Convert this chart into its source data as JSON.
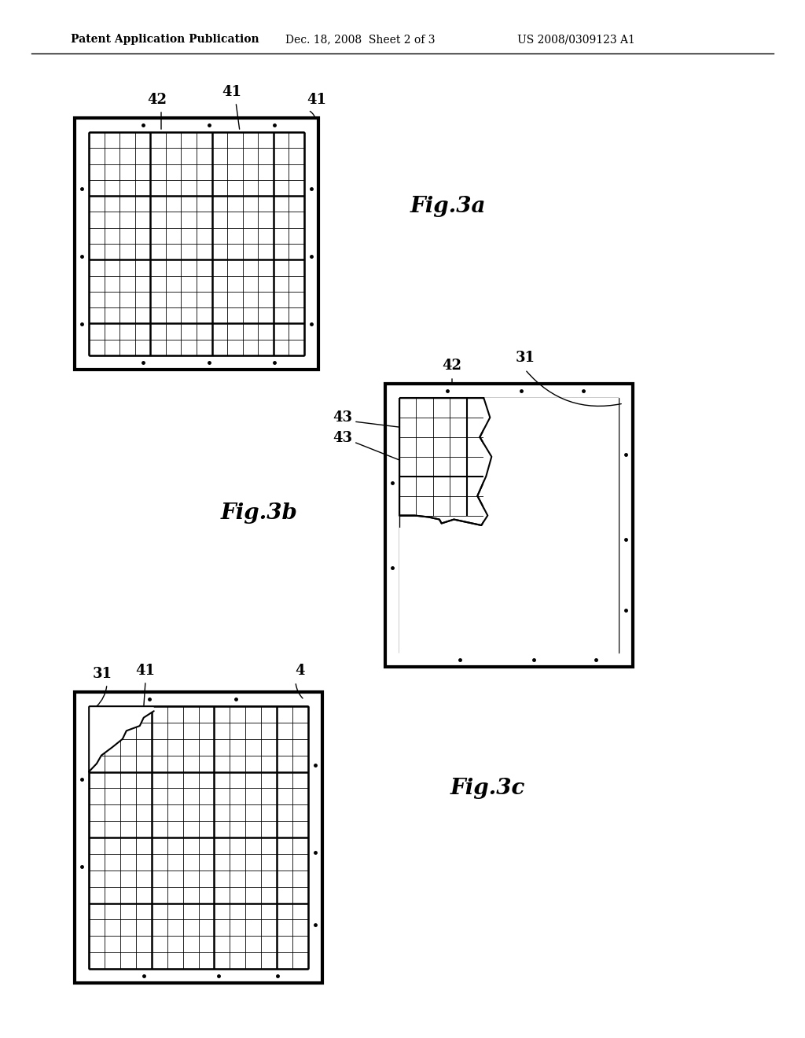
{
  "bg_color": "#ffffff",
  "header_text": "Patent Application Publication",
  "header_date": "Dec. 18, 2008  Sheet 2 of 3",
  "header_patent": "US 2008/0309123 A1",
  "fig3a_label": "Fig.3a",
  "fig3b_label": "Fig.3b",
  "fig3c_label": "Fig.3c",
  "label_42a": "42",
  "label_41a_1": "41",
  "label_41a_2": "41",
  "label_42b": "42",
  "label_31b": "31",
  "label_43b_1": "43",
  "label_43b_2": "43",
  "label_31c": "31",
  "label_41c": "41",
  "label_4c": "4",
  "grid_color": "#000000",
  "frame_color": "#000000"
}
